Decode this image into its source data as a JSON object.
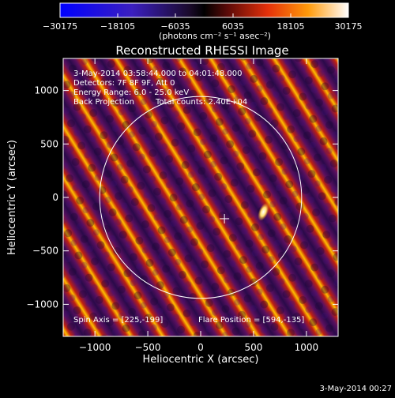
{
  "chart_data": {
    "type": "heatmap",
    "title": "Reconstructed RHESSI Image",
    "xlabel": "Heliocentric X (arcsec)",
    "ylabel": "Heliocentric Y (arcsec)",
    "xlim": [
      -1300,
      1300
    ],
    "ylim": [
      -1300,
      1300
    ],
    "x_ticks": [
      -1000,
      -500,
      0,
      500,
      1000
    ],
    "y_ticks": [
      -1000,
      -500,
      0,
      500,
      1000
    ],
    "x_tick_labels": [
      "−1000",
      "−500",
      "0",
      "500",
      "1000"
    ],
    "y_tick_labels": [
      "−1000",
      "−500",
      "0",
      "500",
      "1000"
    ],
    "colorbar": {
      "min": -30175,
      "max": 30175,
      "ticks": [
        -30175,
        -18105,
        -6035,
        6035,
        18105,
        30175
      ],
      "tick_labels": [
        "−30175",
        "−18105",
        "−6035",
        "6035",
        "18105",
        "30175"
      ],
      "unit_label": "(photons cm⁻² s⁻¹ asec⁻²)"
    },
    "annotations": {
      "time": "3-May-2014 03:58:44.000 to 04:01:48.000",
      "detectors": "Detectors: 7F 8F 9F, Att 0",
      "energy": "Energy Range: 6.0 - 25.0 keV",
      "method": "Back Projection",
      "counts": "Total counts: 2.40E+04",
      "spin_axis": "Spin Axis = [225,-199]",
      "flare_position": "Flare Position = [594,-135]"
    },
    "solar_disk": {
      "center": [
        0,
        0
      ],
      "radius_arcsec": 955
    },
    "spin_axis_marker": [
      225,
      -199
    ],
    "flare_position": [
      594,
      -135
    ],
    "colors": {
      "background": "#000000",
      "disk_and_marker": "#ffffff",
      "colormap_stops": [
        "#0000ff",
        "#5a1ea8",
        "#2a1040",
        "#000000",
        "#7a0f0a",
        "#ff3a0a",
        "#ff9a0a",
        "#ffffff"
      ]
    }
  },
  "footer_date": "3-May-2014 00:27"
}
